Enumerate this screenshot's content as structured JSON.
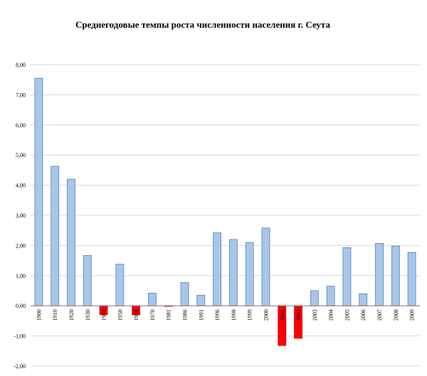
{
  "chart_data": {
    "type": "bar",
    "title": "Среднегодовые темпы роста численности населения г. Сеута",
    "xlabel": "",
    "ylabel": "",
    "categories": [
      "1900",
      "1910",
      "1920",
      "1930",
      "1940",
      "1950",
      "1960",
      "1970",
      "1981",
      "1986",
      "1991",
      "1996",
      "1998",
      "1999",
      "2000",
      "2001",
      "2002",
      "2003",
      "2004",
      "2005",
      "2006",
      "2007",
      "2008",
      "2009"
    ],
    "values": [
      7.55,
      4.63,
      4.2,
      1.67,
      -0.3,
      1.38,
      -0.3,
      0.42,
      -0.02,
      0.77,
      0.35,
      2.42,
      2.2,
      2.1,
      2.58,
      -1.32,
      -1.08,
      0.5,
      0.65,
      1.93,
      0.4,
      2.07,
      1.98,
      1.77
    ],
    "ylim": [
      -2,
      8
    ],
    "yticks": [
      "-2,00",
      "-1,00",
      "0,00",
      "1,00",
      "2,00",
      "3,00",
      "4,00",
      "5,00",
      "6,00",
      "7,00",
      "8,00"
    ],
    "grid": true,
    "legend": "none",
    "colors": {
      "positive_fill": "#a9c6e8",
      "positive_stroke": "#4f81bd",
      "negative_fill": "#ff0000",
      "negative_stroke": "#c00000",
      "grid": "#d9d9d9",
      "axis": "#808080"
    }
  }
}
